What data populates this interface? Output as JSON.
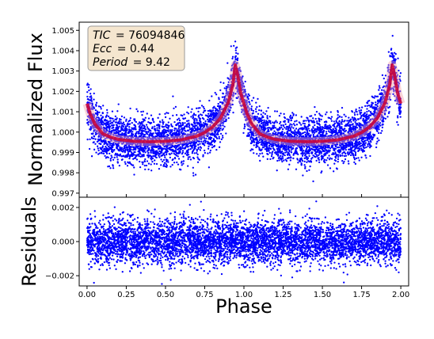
{
  "chart_data": [
    {
      "type": "scatter",
      "panel": "top",
      "xlabel": "",
      "ylabel": "Normalized Flux",
      "xlim": [
        -0.05,
        2.05
      ],
      "ylim": [
        0.9968,
        1.0054
      ],
      "x_ticks": [
        0.0,
        0.25,
        0.5,
        0.75,
        1.0,
        1.25,
        1.5,
        1.75,
        2.0
      ],
      "y_ticks": [
        "0.997",
        "0.998",
        "0.999",
        "1.000",
        "1.001",
        "1.002",
        "1.003",
        "1.004",
        "1.005"
      ],
      "annotation": {
        "lines": [
          {
            "label": "TIC",
            "value": "= 76094846"
          },
          {
            "label": "Ecc",
            "value": "= 0.44"
          },
          {
            "label": "Period",
            "value": "= 9.42"
          }
        ],
        "box_color": "#f5e6cf"
      },
      "series": [
        {
          "style": "points",
          "color": "#0000ff",
          "baseline": 0.9995,
          "scatter_sd": 0.00058,
          "peak_phase": 0.945,
          "peak_value": 1.0033,
          "phase_range": [
            0.0,
            2.0
          ],
          "n_points": 5600
        },
        {
          "style": "model",
          "color": "#cc0033",
          "x": [
            0.0,
            0.02,
            0.05,
            0.1,
            0.15,
            0.2,
            0.3,
            0.4,
            0.5,
            0.6,
            0.7,
            0.75,
            0.8,
            0.85,
            0.9,
            0.93,
            0.945,
            0.96,
            0.98,
            1.0,
            1.02,
            1.05,
            1.1,
            1.15,
            1.2,
            1.3,
            1.4,
            1.5,
            1.6,
            1.7,
            1.75,
            1.8,
            1.85,
            1.9,
            1.93,
            1.945,
            1.96,
            1.98,
            2.0
          ],
          "y": [
            1.0014,
            1.0009,
            1.0004,
            0.99992,
            0.99975,
            0.99964,
            0.99955,
            0.99953,
            0.99955,
            0.99962,
            0.9998,
            0.99998,
            1.00025,
            1.00068,
            1.00145,
            1.00235,
            1.0033,
            1.0028,
            1.0019,
            1.0014,
            1.0009,
            1.0004,
            0.99992,
            0.99975,
            0.99964,
            0.99955,
            0.99953,
            0.99955,
            0.99962,
            0.9998,
            0.99998,
            1.00025,
            1.00068,
            1.00145,
            1.00235,
            1.0033,
            1.0028,
            1.0019,
            1.0014
          ]
        }
      ]
    },
    {
      "type": "scatter",
      "panel": "bottom",
      "xlabel": "Phase",
      "ylabel": "Residuals",
      "xlim": [
        -0.05,
        2.05
      ],
      "ylim": [
        -0.0026,
        0.0026
      ],
      "x_ticks": [
        "0.00",
        "0.25",
        "0.50",
        "0.75",
        "1.00",
        "1.25",
        "1.50",
        "1.75",
        "2.00"
      ],
      "y_ticks": [
        "−0.002",
        "0.000",
        "0.002"
      ],
      "y_tick_values": [
        -0.002,
        0.0,
        0.002
      ],
      "series": [
        {
          "style": "points",
          "color": "#0000ff",
          "center": 0.0,
          "scatter_sd": 0.00065,
          "phase_range": [
            0.0,
            2.0
          ],
          "n_points": 5600
        }
      ]
    }
  ]
}
